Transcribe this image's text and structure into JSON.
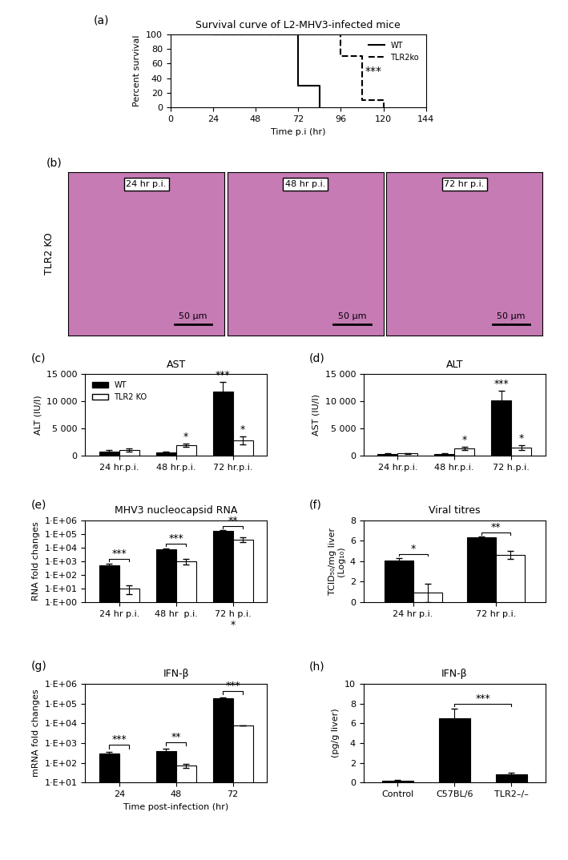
{
  "chart_data": [
    {
      "panel": "(a)",
      "type": "line",
      "title": "Survival curve of L2-MHV3-infected mice",
      "x_label": "Time p.i (hr)",
      "y_label": "Percent survival",
      "xlim": [
        0,
        144
      ],
      "xticks": [
        0,
        24,
        48,
        72,
        96,
        120,
        144
      ],
      "ylim": [
        0,
        100
      ],
      "yticks": [
        0,
        20,
        40,
        60,
        80,
        100
      ],
      "legend": "upper right",
      "series": [
        {
          "name": "WT",
          "color": "#000000",
          "line_style": "solid",
          "x": [
            24,
            72,
            72,
            84,
            84
          ],
          "values": [
            100,
            100,
            30,
            30,
            0
          ]
        },
        {
          "name": "TLR2ko",
          "color": "#000000",
          "line_style": "dashed",
          "x": [
            24,
            96,
            96,
            108,
            108,
            120,
            120
          ],
          "values": [
            100,
            100,
            70,
            70,
            10,
            10,
            0
          ]
        }
      ],
      "annotations": [
        {
          "text": "***"
        }
      ]
    },
    {
      "panel": "(b)",
      "type": "image",
      "row_label": "TLR2 KO",
      "images": [
        {
          "label": "24 hr p.i.",
          "scale_bar": "50 µm"
        },
        {
          "label": "48 hr p.i.",
          "scale_bar": "50 µm"
        },
        {
          "label": "72 hr p.i.",
          "scale_bar": "50 µm"
        }
      ]
    },
    {
      "panel": "(c)",
      "type": "bar",
      "title": "AST",
      "y_label": "ALT (IU/l)",
      "categories": [
        "24 hr.p.i.",
        "48 hr.p.i.",
        "72 hr.p.i."
      ],
      "ylim": [
        0,
        15000
      ],
      "yticks": [
        0,
        {
          "value": 5000,
          "label": "5 000"
        },
        {
          "value": 10000,
          "label": "10 000"
        },
        {
          "value": 15000,
          "label": "15 000"
        }
      ],
      "legend": "upper left",
      "series": [
        {
          "name": "WT",
          "color": "#000000",
          "values": [
            800,
            600,
            11800
          ],
          "errors": [
            300,
            100,
            1800
          ]
        },
        {
          "name": "TLR2 KO",
          "color": "#ffffff",
          "values": [
            1100,
            2000,
            2800
          ],
          "errors": [
            300,
            300,
            700
          ]
        }
      ],
      "annotations": [
        {
          "text": "*",
          "category": "48 hr.p.i.",
          "series": "TLR2 KO"
        },
        {
          "text": "***",
          "category": "72 hr.p.i.",
          "series": "WT"
        },
        {
          "text": "*",
          "category": "72 hr.p.i.",
          "series": "TLR2 KO"
        }
      ]
    },
    {
      "panel": "(d)",
      "type": "bar",
      "title": "ALT",
      "y_label": "AST (IU/l)",
      "categories": [
        "24 hr.p.i.",
        "48 hr.p.i.",
        "72 h.p.i."
      ],
      "ylim": [
        0,
        15000
      ],
      "yticks": [
        0,
        {
          "value": 5000,
          "label": "5 000"
        },
        {
          "value": 10000,
          "label": "10 000"
        },
        {
          "value": 15000,
          "label": "15 000"
        }
      ],
      "series": [
        {
          "name": "WT",
          "color": "#000000",
          "values": [
            300,
            300,
            10200
          ],
          "errors": [
            100,
            100,
            1700
          ]
        },
        {
          "name": "TLR2 KO",
          "color": "#ffffff",
          "values": [
            400,
            1300,
            1500
          ],
          "errors": [
            100,
            300,
            500
          ]
        }
      ],
      "annotations": [
        {
          "text": "*",
          "category": "48 hr.p.i.",
          "series": "TLR2 KO"
        },
        {
          "text": "***",
          "category": "72 h.p.i.",
          "series": "WT"
        },
        {
          "text": "*",
          "category": "72 h.p.i.",
          "series": "TLR2 KO"
        }
      ]
    },
    {
      "panel": "(e)",
      "type": "bar",
      "title": "MHV3 nucleocapsid RNA",
      "y_label": "RNA fold changes",
      "categories": [
        "24 hr p.i.",
        "48 hr  p.i.",
        "72 h p.i."
      ],
      "log": "y",
      "ylim": [
        1,
        1000000
      ],
      "yticks": [
        {
          "value": 1,
          "label": "1·E+00"
        },
        {
          "value": 10,
          "label": "1·E+01"
        },
        {
          "value": 100,
          "label": "1·E+02"
        },
        {
          "value": 1000,
          "label": "1·E+03"
        },
        {
          "value": 10000,
          "label": "1·E+04"
        },
        {
          "value": 100000,
          "label": "1·E+05"
        },
        {
          "value": 1000000,
          "label": "1·E+06"
        }
      ],
      "series": [
        {
          "name": "WT",
          "color": "#000000",
          "values": [
            500,
            7000,
            160000
          ],
          "errors": [
            150,
            1500,
            20000
          ]
        },
        {
          "name": "TLR2 KO",
          "color": "#ffffff",
          "values": [
            10,
            1000,
            40000
          ],
          "errors": [
            6,
            400,
            15000
          ]
        }
      ],
      "annotations": [
        {
          "text": "***",
          "category": "24 hr p.i.",
          "bracket": true
        },
        {
          "text": "***",
          "category": "48 hr  p.i.",
          "bracket": true
        },
        {
          "text": "**",
          "category": "72 h p.i.",
          "bracket": true
        },
        {
          "text": "*",
          "category": "72 h p.i.",
          "below_axis": true
        }
      ]
    },
    {
      "panel": "(f)",
      "type": "bar",
      "title": "Viral titres",
      "y_label": "TCID₅₀/mg liver\n(Log₁₀)",
      "categories": [
        "24 hr p.i.",
        "72 hr p.i."
      ],
      "ylim": [
        0,
        8
      ],
      "yticks": [
        0,
        2,
        4,
        6,
        8
      ],
      "series": [
        {
          "name": "WT",
          "color": "#000000",
          "values": [
            4.1,
            6.3
          ],
          "errors": [
            0.2,
            0.1
          ]
        },
        {
          "name": "TLR2 KO",
          "color": "#ffffff",
          "values": [
            0.9,
            4.6
          ],
          "errors": [
            0.9,
            0.4
          ]
        }
      ],
      "annotations": [
        {
          "text": "*",
          "category": "24 hr p.i.",
          "bracket": true
        },
        {
          "text": "**",
          "category": "72 hr p.i.",
          "bracket": true
        }
      ]
    },
    {
      "panel": "(g)",
      "type": "bar",
      "title": "IFN-β",
      "y_label": "mRNA fold changes",
      "x_label": "Time post-infection (hr)",
      "categories": [
        "24",
        "48",
        "72"
      ],
      "log": "y",
      "ylim": [
        10,
        1000000
      ],
      "yticks": [
        {
          "value": 10,
          "label": "1·E+01"
        },
        {
          "value": 100,
          "label": "1·E+02"
        },
        {
          "value": 1000,
          "label": "1·E+03"
        },
        {
          "value": 10000,
          "label": "1·E+04"
        },
        {
          "value": 100000,
          "label": "1·E+05"
        },
        {
          "value": 1000000,
          "label": "1·E+06"
        }
      ],
      "series": [
        {
          "name": "WT",
          "color": "#000000",
          "values": [
            300,
            400,
            180000
          ],
          "errors": [
            60,
            100,
            20000
          ]
        },
        {
          "name": "TLR2 KO",
          "color": "#ffffff",
          "values": [
            null,
            70,
            8000
          ],
          "errors": [
            null,
            15,
            null
          ]
        }
      ],
      "annotations": [
        {
          "text": "***",
          "category": "24",
          "bracket": true
        },
        {
          "text": "**",
          "category": "48",
          "bracket": true
        },
        {
          "text": "***",
          "category": "72",
          "bracket": true
        }
      ]
    },
    {
      "panel": "(h)",
      "type": "bar",
      "title": "IFN-β",
      "y_label": "(pg/g liver)",
      "categories": [
        "Control",
        "C57BL/6",
        "TLR2–/–"
      ],
      "ylim": [
        0,
        10
      ],
      "yticks": [
        0,
        2,
        4,
        6,
        8,
        10
      ],
      "series": [
        {
          "name": "IFN-β",
          "color": "#000000",
          "values": [
            0.2,
            6.5,
            0.8
          ],
          "errors": [
            0.1,
            1.0,
            0.2
          ]
        }
      ],
      "annotations": [
        {
          "text": "***",
          "categories": [
            "C57BL/6",
            "TLR2–/–"
          ]
        }
      ]
    }
  ]
}
